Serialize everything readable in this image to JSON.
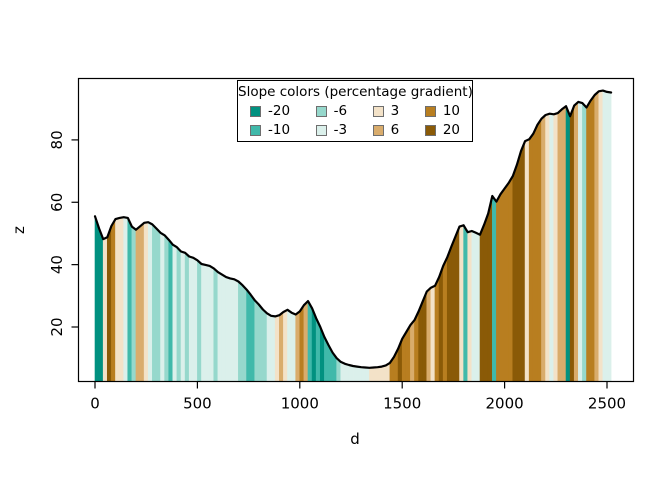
{
  "chart_data": {
    "type": "area",
    "title": "",
    "xlabel": "d",
    "ylabel": "z",
    "xlim": [
      -75,
      2630
    ],
    "ylim": [
      2.5,
      100
    ],
    "x_ticks": [
      "0",
      "500",
      "1000",
      "1500",
      "2000",
      "2500"
    ],
    "x_tick_values": [
      0,
      500,
      1000,
      1500,
      2000,
      2500
    ],
    "y_ticks": [
      "20",
      "40",
      "60",
      "80"
    ],
    "y_tick_values": [
      20,
      40,
      60,
      80
    ],
    "grid": false,
    "line_color": "#000000",
    "background": "#ffffff",
    "legend": {
      "position": "top-center",
      "title": "Slope colors (percentage gradient)",
      "entries": [
        {
          "label": "-20",
          "color": "#019180",
          "slope_max": -15
        },
        {
          "label": "-10",
          "color": "#40b9aa",
          "slope_max": -8
        },
        {
          "label": "-6",
          "color": "#96d8cc",
          "slope_max": -4.5
        },
        {
          "label": "-3",
          "color": "#dbf0eb",
          "slope_max": 0
        },
        {
          "label": "3",
          "color": "#f3e2c8",
          "slope_max": 4.5
        },
        {
          "label": "6",
          "color": "#d9ac6c",
          "slope_max": 8
        },
        {
          "label": "10",
          "color": "#b87e20",
          "slope_max": 15
        },
        {
          "label": "20",
          "color": "#8a5a07",
          "slope_max": null
        }
      ]
    },
    "profile": [
      [
        0,
        55.5
      ],
      [
        20,
        51.6
      ],
      [
        40,
        48.2
      ],
      [
        60,
        48.8
      ],
      [
        80,
        52.4
      ],
      [
        100,
        54.6
      ],
      [
        120,
        55.0
      ],
      [
        140,
        55.2
      ],
      [
        160,
        55.0
      ],
      [
        180,
        52.2
      ],
      [
        200,
        51.2
      ],
      [
        220,
        52.3
      ],
      [
        240,
        53.4
      ],
      [
        260,
        53.6
      ],
      [
        280,
        52.9
      ],
      [
        300,
        51.6
      ],
      [
        320,
        50.2
      ],
      [
        340,
        49.4
      ],
      [
        360,
        48.0
      ],
      [
        380,
        46.4
      ],
      [
        400,
        45.6
      ],
      [
        420,
        44.2
      ],
      [
        440,
        43.8
      ],
      [
        460,
        42.6
      ],
      [
        480,
        42.2
      ],
      [
        500,
        41.4
      ],
      [
        520,
        40.2
      ],
      [
        540,
        39.9
      ],
      [
        560,
        39.6
      ],
      [
        580,
        38.8
      ],
      [
        600,
        37.6
      ],
      [
        620,
        36.8
      ],
      [
        640,
        36.0
      ],
      [
        660,
        35.6
      ],
      [
        680,
        35.3
      ],
      [
        700,
        34.6
      ],
      [
        720,
        33.4
      ],
      [
        740,
        32.0
      ],
      [
        760,
        30.4
      ],
      [
        780,
        28.6
      ],
      [
        800,
        27.2
      ],
      [
        820,
        25.6
      ],
      [
        840,
        24.4
      ],
      [
        860,
        23.6
      ],
      [
        880,
        23.4
      ],
      [
        900,
        23.8
      ],
      [
        920,
        24.8
      ],
      [
        940,
        25.5
      ],
      [
        960,
        24.6
      ],
      [
        980,
        24.0
      ],
      [
        1000,
        25.0
      ],
      [
        1020,
        27.0
      ],
      [
        1040,
        28.3
      ],
      [
        1060,
        26.0
      ],
      [
        1080,
        22.8
      ],
      [
        1100,
        20.0
      ],
      [
        1120,
        16.8
      ],
      [
        1140,
        14.2
      ],
      [
        1160,
        11.8
      ],
      [
        1180,
        10.0
      ],
      [
        1200,
        8.8
      ],
      [
        1220,
        8.2
      ],
      [
        1240,
        7.8
      ],
      [
        1260,
        7.5
      ],
      [
        1280,
        7.3
      ],
      [
        1300,
        7.1
      ],
      [
        1320,
        7.0
      ],
      [
        1340,
        6.9
      ],
      [
        1360,
        7.0
      ],
      [
        1380,
        7.1
      ],
      [
        1400,
        7.3
      ],
      [
        1420,
        7.7
      ],
      [
        1440,
        8.5
      ],
      [
        1460,
        10.4
      ],
      [
        1480,
        13.0
      ],
      [
        1500,
        16.2
      ],
      [
        1520,
        18.4
      ],
      [
        1540,
        20.6
      ],
      [
        1560,
        22.2
      ],
      [
        1580,
        25.0
      ],
      [
        1600,
        28.2
      ],
      [
        1620,
        31.4
      ],
      [
        1640,
        32.6
      ],
      [
        1660,
        33.2
      ],
      [
        1680,
        36.0
      ],
      [
        1700,
        39.6
      ],
      [
        1720,
        42.4
      ],
      [
        1740,
        45.8
      ],
      [
        1760,
        49.0
      ],
      [
        1780,
        52.2
      ],
      [
        1800,
        52.6
      ],
      [
        1820,
        50.4
      ],
      [
        1840,
        50.8
      ],
      [
        1860,
        50.2
      ],
      [
        1880,
        49.6
      ],
      [
        1900,
        52.8
      ],
      [
        1920,
        56.4
      ],
      [
        1940,
        62.0
      ],
      [
        1960,
        60.2
      ],
      [
        1980,
        62.6
      ],
      [
        2000,
        64.4
      ],
      [
        2020,
        66.2
      ],
      [
        2040,
        68.4
      ],
      [
        2060,
        72.0
      ],
      [
        2080,
        76.4
      ],
      [
        2100,
        79.6
      ],
      [
        2120,
        80.2
      ],
      [
        2140,
        82.0
      ],
      [
        2160,
        84.8
      ],
      [
        2180,
        86.8
      ],
      [
        2200,
        88.0
      ],
      [
        2220,
        88.4
      ],
      [
        2240,
        88.2
      ],
      [
        2260,
        88.6
      ],
      [
        2280,
        89.8
      ],
      [
        2300,
        90.8
      ],
      [
        2320,
        87.6
      ],
      [
        2340,
        91.0
      ],
      [
        2360,
        92.2
      ],
      [
        2380,
        91.8
      ],
      [
        2400,
        90.4
      ],
      [
        2420,
        92.6
      ],
      [
        2440,
        94.4
      ],
      [
        2460,
        95.6
      ],
      [
        2480,
        95.8
      ],
      [
        2500,
        95.4
      ],
      [
        2520,
        95.2
      ]
    ]
  }
}
